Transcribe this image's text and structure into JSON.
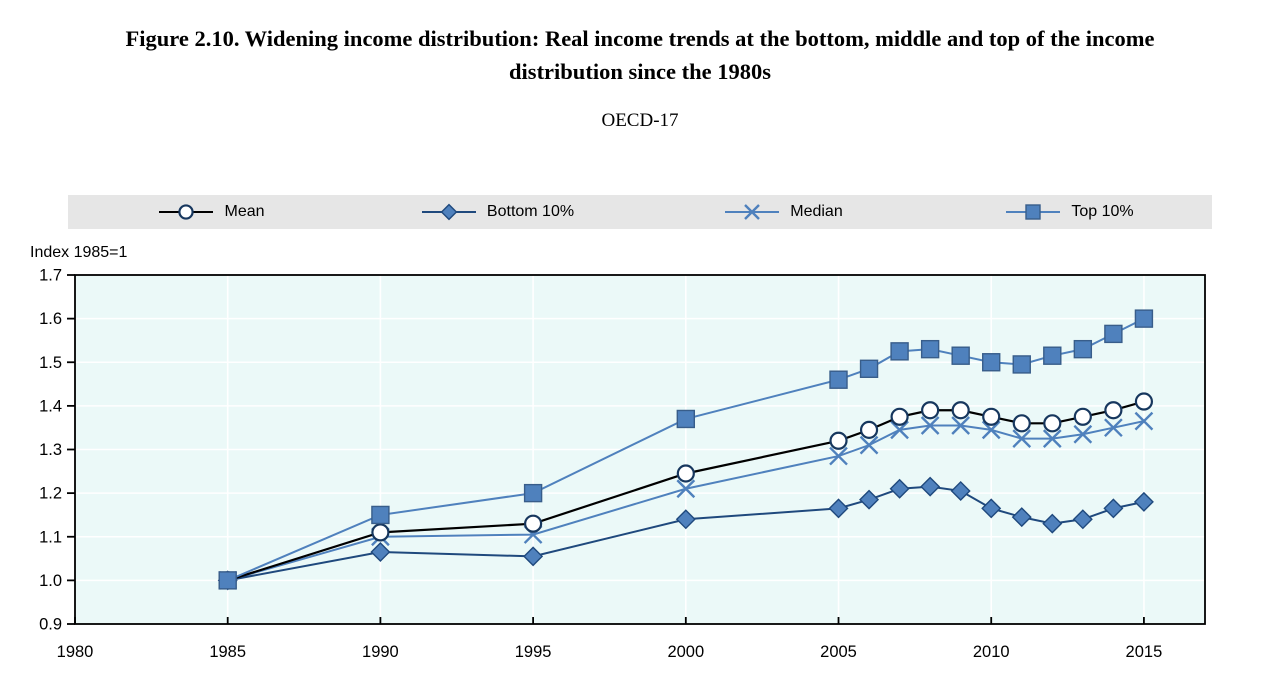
{
  "title_lines": [
    "Figure 2.10. Widening income distribution: Real income trends at the bottom, middle and top of the income",
    "distribution since the 1980s"
  ],
  "subtitle": "OECD-17",
  "legend": [
    {
      "label": "Mean"
    },
    {
      "label": "Bottom 10%"
    },
    {
      "label": "Median"
    },
    {
      "label": "Top 10%"
    }
  ],
  "colors": {
    "accent_blue": "#4f81bd",
    "dark_blue_line": "#1f497d",
    "marker_edge_navy": "#17375e",
    "square_edge": "#385d8a",
    "mean_line": "#000000",
    "legend_bg": "#e6e6e6",
    "plot_bg": "#ebf9f8",
    "grid": "#ffffff",
    "frame": "#000000"
  },
  "chart_data": {
    "type": "line",
    "title": "Figure 2.10. Widening income distribution: Real income trends at the bottom, middle and top of the income distribution since the 1980s",
    "subtitle": "OECD-17",
    "ylabel": "Index 1985=1",
    "xlabel": "",
    "x": [
      1985,
      1990,
      1995,
      2000,
      2005,
      2006,
      2007,
      2008,
      2009,
      2010,
      2011,
      2012,
      2013,
      2014,
      2015
    ],
    "xlim": [
      1980,
      2017
    ],
    "ylim": [
      0.9,
      1.7
    ],
    "xticks": [
      1980,
      1985,
      1990,
      1995,
      2000,
      2005,
      2010,
      2015
    ],
    "yticks": [
      0.9,
      1.0,
      1.1,
      1.2,
      1.3,
      1.4,
      1.5,
      1.6,
      1.7
    ],
    "grid": true,
    "legend_position": "top",
    "draw_order": [
      2,
      1,
      0,
      3
    ],
    "series": [
      {
        "name": "Mean",
        "marker": "circle",
        "line_color": "#000000",
        "marker_fill": "#ffffff",
        "marker_stroke": "#17375e",
        "values": [
          1.0,
          1.11,
          1.13,
          1.245,
          1.32,
          1.345,
          1.375,
          1.39,
          1.39,
          1.375,
          1.36,
          1.36,
          1.375,
          1.39,
          1.41
        ]
      },
      {
        "name": "Bottom 10%",
        "marker": "diamond",
        "line_color": "#1f497d",
        "marker_fill": "#4f81bd",
        "marker_stroke": "#1f497d",
        "values": [
          1.0,
          1.065,
          1.055,
          1.14,
          1.165,
          1.185,
          1.21,
          1.215,
          1.205,
          1.165,
          1.145,
          1.13,
          1.14,
          1.165,
          1.18
        ]
      },
      {
        "name": "Median",
        "marker": "x",
        "line_color": "#4f81bd",
        "marker_fill": "none",
        "marker_stroke": "#4f81bd",
        "values": [
          1.0,
          1.1,
          1.105,
          1.21,
          1.285,
          1.31,
          1.345,
          1.355,
          1.355,
          1.345,
          1.325,
          1.325,
          1.335,
          1.35,
          1.365
        ]
      },
      {
        "name": "Top 10%",
        "marker": "square",
        "line_color": "#4f81bd",
        "marker_fill": "#4f81bd",
        "marker_stroke": "#385d8a",
        "values": [
          1.0,
          1.15,
          1.2,
          1.37,
          1.46,
          1.485,
          1.525,
          1.53,
          1.515,
          1.5,
          1.495,
          1.515,
          1.53,
          1.565,
          1.6
        ]
      }
    ]
  }
}
